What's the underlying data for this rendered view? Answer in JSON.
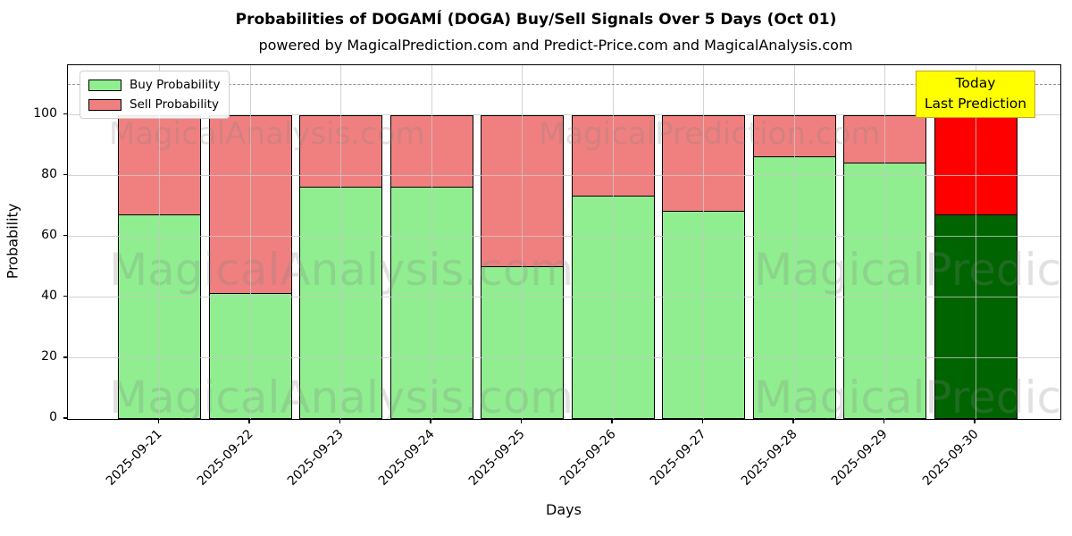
{
  "title": "Probabilities of DOGAMÍ (DOGA) Buy/Sell Signals Over 5 Days (Oct 01)",
  "subtitle": "powered by MagicalPrediction.com and Predict-Price.com and MagicalAnalysis.com",
  "legend": {
    "buy_label": "Buy Probability",
    "sell_label": "Sell Probability"
  },
  "annotation": {
    "line1": "Today",
    "line2": "Last Prediction"
  },
  "watermarks": {
    "left": "MagicalAnalysis.com",
    "right": "MagicalPrediction.com"
  },
  "colors": {
    "buy": "#90EE90",
    "sell": "#F08080",
    "buy_today": "#006400",
    "sell_today": "#FF0000",
    "annotation_bg": "#FFFF00",
    "grid": "#C8C8C8",
    "dashed_line": "#8F8F8F"
  },
  "chart_data": {
    "type": "bar",
    "stacked": true,
    "title": "Probabilities of DOGAMÍ (DOGA) Buy/Sell Signals Over 5 Days (Oct 01)",
    "xlabel": "Days",
    "ylabel": "Probability",
    "categories": [
      "2025-09-21",
      "2025-09-22",
      "2025-09-23",
      "2025-09-24",
      "2025-09-25",
      "2025-09-26",
      "2025-09-27",
      "2025-09-28",
      "2025-09-29",
      "2025-09-30"
    ],
    "series": [
      {
        "name": "Buy Probability",
        "values": [
          67,
          41,
          76,
          76,
          50,
          73,
          68,
          86,
          84,
          67
        ],
        "color": "#90EE90",
        "today_color": "#006400"
      },
      {
        "name": "Sell Probability",
        "values": [
          33,
          59,
          24,
          24,
          50,
          27,
          32,
          14,
          16,
          33
        ],
        "color": "#F08080",
        "today_color": "#FF0000"
      }
    ],
    "totals": [
      100,
      100,
      100,
      100,
      100,
      100,
      100,
      100,
      100,
      100
    ],
    "yticks": [
      0,
      20,
      40,
      60,
      80,
      100
    ],
    "ylim": [
      0,
      116.3
    ],
    "dashed_line_y": 110,
    "grid": true,
    "legend_position": "upper left",
    "today_index": 9
  }
}
